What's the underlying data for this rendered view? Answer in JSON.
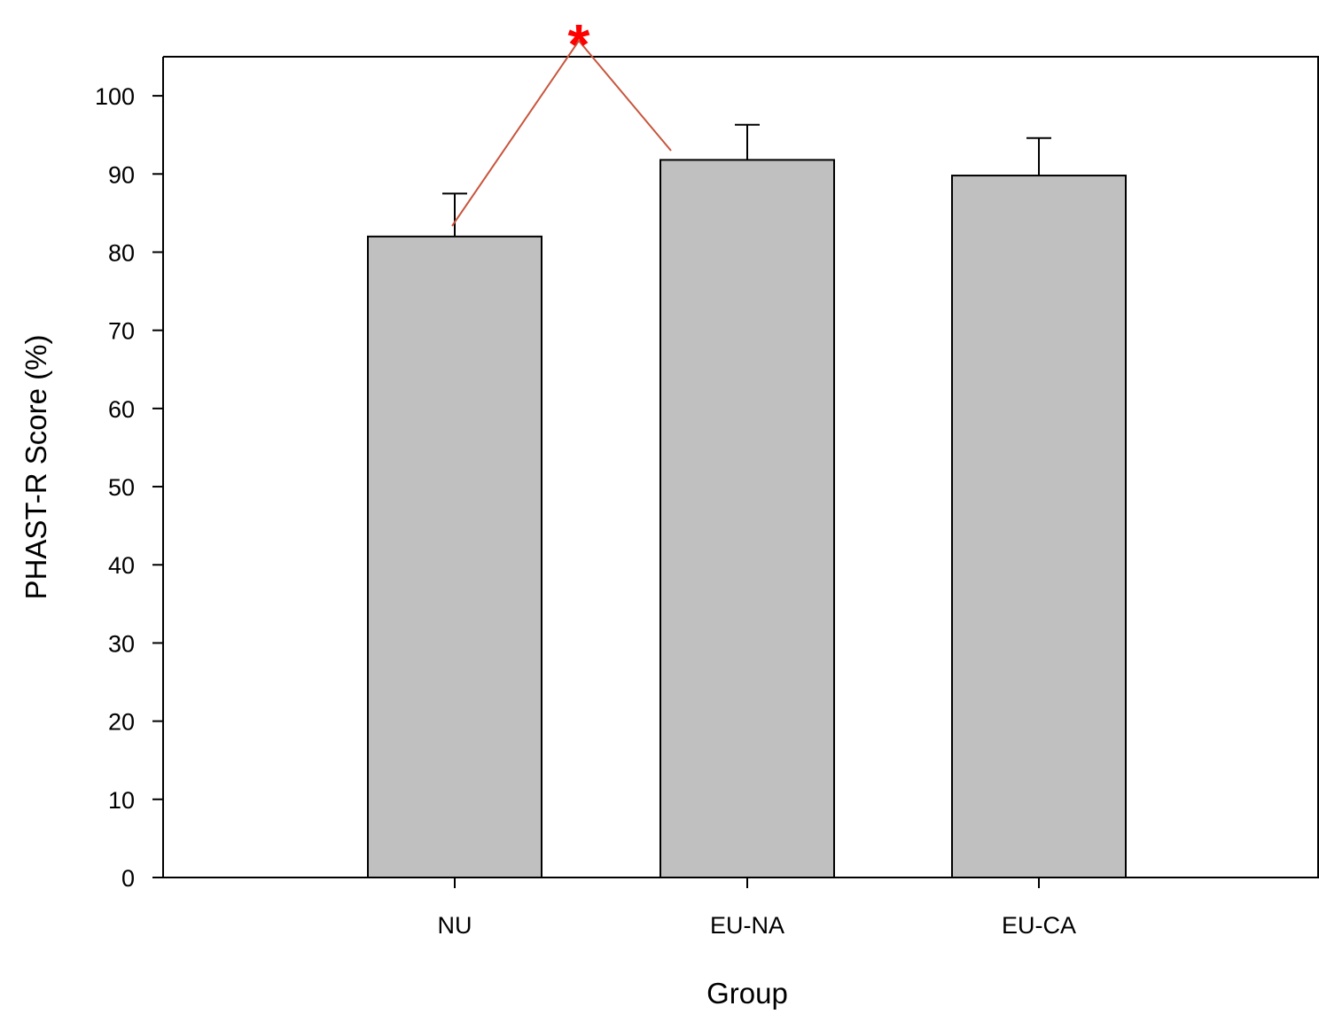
{
  "chart_data": {
    "type": "bar",
    "title": "",
    "xlabel": "Group",
    "ylabel": "PHAST-R Score (%)",
    "categories": [
      "NU",
      "EU-NA",
      "EU-CA"
    ],
    "values": [
      82.0,
      91.8,
      89.8
    ],
    "error_upper": [
      5.5,
      4.5,
      4.8
    ],
    "ylim": [
      0,
      105
    ],
    "yticks": [
      0,
      10,
      20,
      30,
      40,
      50,
      60,
      70,
      80,
      90,
      100
    ],
    "grid": false,
    "legend": "none",
    "bar_color": "#c0c0c0",
    "annotations": [
      {
        "text": "*",
        "between": [
          "NU",
          "EU-NA"
        ],
        "color": "#ff0000",
        "line_color": "#c8553d"
      }
    ]
  }
}
